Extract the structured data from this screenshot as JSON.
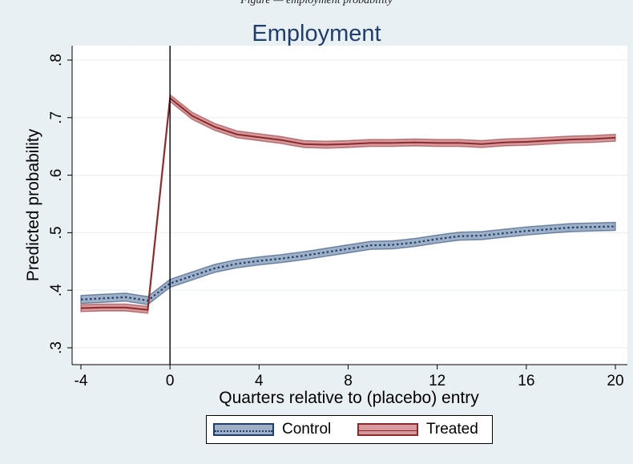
{
  "header_text": "F̶i̶g̶u̶r̶e̶ ̶—̶ ̶e̶m̶p̶l̶o̶y̶m̶e̶n̶t̶ ̶p̶r̶o̶b̶a̶b̶i̶l̶i̶t̶y̶",
  "chart_data": {
    "type": "line",
    "title": "Employment",
    "xlabel": "Quarters relative to (placebo) entry",
    "ylabel": "Predicted probability",
    "xlim": [
      -4,
      20
    ],
    "ylim": [
      0.3,
      0.8
    ],
    "x_ticks": [
      -4,
      0,
      4,
      8,
      12,
      16,
      20
    ],
    "y_ticks": [
      0.3,
      0.4,
      0.5,
      0.6,
      0.7,
      0.8
    ],
    "y_tick_labels": [
      ".3",
      ".4",
      ".5",
      ".6",
      ".7",
      ".8"
    ],
    "grid": true,
    "vline_x": 0,
    "legend_position": "bottom",
    "x": [
      -4,
      -3,
      -2,
      -1,
      0,
      1,
      2,
      3,
      4,
      5,
      6,
      7,
      8,
      9,
      10,
      11,
      12,
      13,
      14,
      15,
      16,
      17,
      18,
      19,
      20
    ],
    "series": [
      {
        "name": "Control",
        "color": "#1f3e6e",
        "band_color": "#9db0c6",
        "style": "dotted",
        "values": [
          0.384,
          0.386,
          0.388,
          0.382,
          0.412,
          0.425,
          0.438,
          0.446,
          0.451,
          0.455,
          0.46,
          0.466,
          0.472,
          0.478,
          0.479,
          0.483,
          0.489,
          0.494,
          0.495,
          0.499,
          0.503,
          0.506,
          0.509,
          0.51,
          0.511
        ],
        "ci_halfwidth": 0.007
      },
      {
        "name": "Treated",
        "color": "#8c2a2a",
        "band_color": "#d69a9f",
        "style": "solid",
        "values": [
          0.369,
          0.37,
          0.37,
          0.366,
          0.734,
          0.703,
          0.684,
          0.671,
          0.666,
          0.661,
          0.654,
          0.653,
          0.654,
          0.656,
          0.656,
          0.657,
          0.656,
          0.656,
          0.654,
          0.657,
          0.658,
          0.66,
          0.662,
          0.663,
          0.665
        ],
        "ci_halfwidth": 0.006
      }
    ]
  }
}
